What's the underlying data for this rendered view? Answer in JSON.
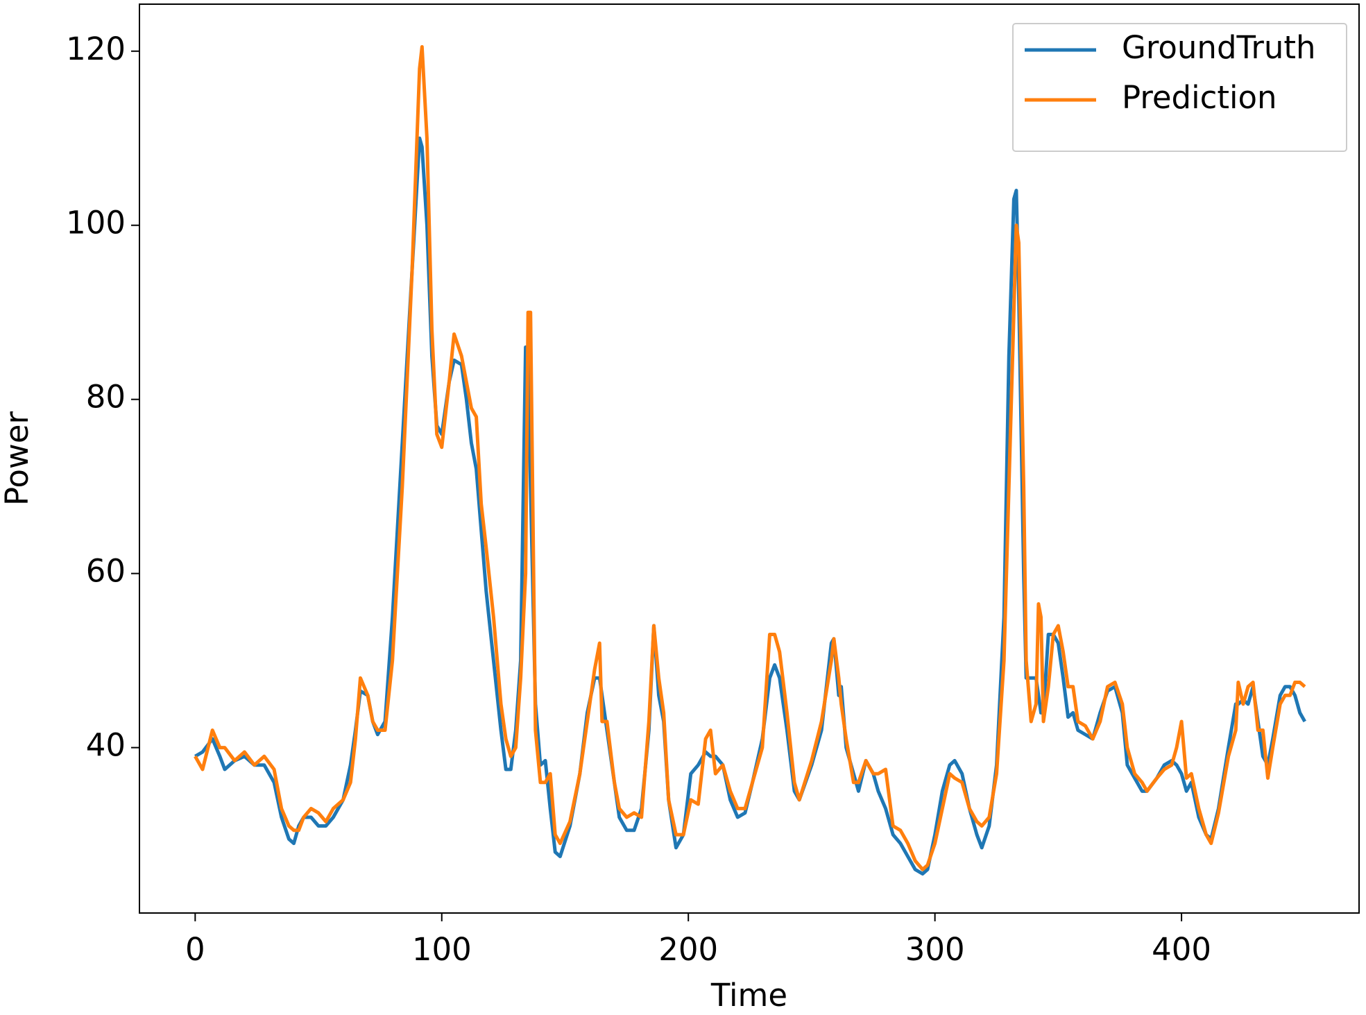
{
  "chart_data": {
    "type": "line",
    "x_label": "Time",
    "y_label": "Power",
    "xlim": [
      -22.6,
      472
    ],
    "ylim": [
      21,
      125.4
    ],
    "xticks": [
      0,
      100,
      200,
      300,
      400
    ],
    "yticks": [
      40,
      60,
      80,
      100,
      120
    ],
    "grid": false,
    "legend": "upper right",
    "x": [
      0,
      3,
      7,
      10,
      12,
      16,
      20,
      24,
      28,
      32,
      35,
      38,
      40,
      42,
      44,
      47,
      50,
      53,
      56,
      60,
      63,
      65,
      67,
      70,
      72,
      74,
      77,
      80,
      84,
      88,
      91,
      92,
      94,
      96,
      98,
      100,
      103,
      105,
      108,
      110,
      112,
      114,
      116,
      118,
      121,
      124,
      126,
      128,
      130,
      132,
      134,
      135,
      136,
      138,
      140,
      142,
      144,
      146,
      148,
      152,
      156,
      159,
      162,
      164,
      165,
      167,
      170,
      172,
      175,
      178,
      181,
      184,
      186,
      188,
      190,
      192,
      195,
      198,
      201,
      204,
      207,
      209,
      211,
      214,
      217,
      220,
      223,
      226,
      230,
      233,
      235,
      237,
      240,
      243,
      245,
      250,
      254,
      258,
      259,
      261,
      262,
      264,
      267,
      269,
      272,
      275,
      277,
      280,
      283,
      286,
      289,
      292,
      295,
      297,
      300,
      303,
      306,
      308,
      311,
      314,
      317,
      319,
      322,
      325,
      328,
      330,
      332,
      333,
      334,
      336,
      337,
      339,
      341,
      342,
      343,
      344,
      346,
      348,
      350,
      352,
      354,
      356,
      358,
      361,
      364,
      367,
      370,
      373,
      376,
      378,
      381,
      384,
      386,
      390,
      393,
      396,
      398,
      400,
      402,
      404,
      407,
      410,
      412,
      415,
      419,
      422,
      423,
      425,
      427,
      429,
      431,
      433,
      435,
      437,
      440,
      442,
      444,
      446,
      448,
      450
    ],
    "series": [
      {
        "name": "GroundTruth",
        "color": "#1f77b4",
        "values": [
          39,
          39.5,
          41,
          39,
          37.5,
          38.5,
          39,
          38,
          38,
          36,
          32,
          29.5,
          29,
          31,
          32,
          32,
          31,
          31,
          32,
          34,
          38,
          42,
          46.5,
          46,
          43,
          41.5,
          43,
          55,
          75,
          95,
          110,
          109,
          100,
          85,
          77,
          76,
          82,
          84.5,
          84,
          80,
          75,
          72,
          65,
          58,
          50,
          42,
          37.5,
          37.5,
          42,
          50,
          86,
          86,
          70,
          45,
          38,
          38.5,
          33,
          28,
          27.5,
          31,
          37,
          44,
          48,
          48,
          46,
          42,
          36,
          32,
          30.5,
          30.5,
          33,
          42,
          54,
          46,
          43,
          34,
          28.5,
          30,
          37,
          38,
          39.5,
          39,
          39,
          38,
          34,
          32,
          32.5,
          36,
          41,
          48,
          49.5,
          48,
          42,
          35,
          34,
          38,
          42,
          52,
          52.5,
          46,
          47,
          40,
          37,
          35,
          38.5,
          37,
          35,
          33,
          30,
          29,
          27.5,
          26,
          25.5,
          26,
          30,
          35,
          38,
          38.5,
          37,
          33,
          30,
          28.5,
          31,
          38,
          55,
          85,
          103,
          104,
          92,
          60,
          48,
          48,
          48,
          46,
          44,
          44,
          53,
          53,
          52,
          48,
          43.5,
          44,
          42,
          41.5,
          41,
          44,
          46.5,
          47,
          44,
          38,
          36.5,
          35,
          35,
          36.5,
          38,
          38.5,
          38,
          37,
          35,
          36,
          32,
          30,
          29.5,
          33,
          40,
          45,
          45,
          45.5,
          45,
          47,
          43,
          39,
          38,
          41,
          46,
          47,
          47,
          46,
          44,
          43
        ]
      },
      {
        "name": "Prediction",
        "color": "#ff7f0e",
        "values": [
          39,
          37.5,
          42,
          40,
          40,
          38.5,
          39.5,
          38,
          39,
          37.5,
          33,
          31,
          30.5,
          30.5,
          32,
          33,
          32.5,
          31.5,
          33,
          34,
          36,
          41,
          48,
          46,
          43,
          42,
          42,
          50,
          70,
          95,
          118,
          120.5,
          110,
          88,
          76,
          74.5,
          82,
          87.5,
          85,
          82,
          79,
          78,
          68,
          63,
          55,
          45,
          41,
          39,
          40,
          48,
          60,
          90,
          90,
          42,
          36,
          36,
          37,
          30,
          29,
          31.5,
          37,
          43,
          49,
          52,
          43,
          43,
          36,
          33,
          32,
          32.5,
          32,
          43,
          54,
          48,
          44,
          34,
          30,
          30,
          34,
          33.5,
          41,
          42,
          37,
          38,
          35,
          33,
          33,
          36,
          40,
          53,
          53,
          51,
          44,
          36,
          34,
          38.5,
          43,
          50,
          52.5,
          48,
          45,
          41,
          36,
          36,
          38.5,
          37,
          37,
          37.5,
          31,
          30.5,
          29,
          27,
          26,
          26.5,
          29,
          33,
          37,
          36.5,
          36,
          33,
          31.5,
          31,
          32,
          37,
          50,
          70,
          90,
          100,
          98,
          70,
          50,
          43,
          45,
          56.5,
          55,
          43,
          47,
          53,
          54,
          51,
          47,
          47,
          43,
          42.5,
          41,
          43,
          47,
          47.5,
          45,
          40,
          37,
          36,
          35,
          36.5,
          37.5,
          38,
          40,
          43,
          36.5,
          37,
          33,
          30,
          29,
          32.5,
          39,
          42,
          47.5,
          45,
          47,
          47.5,
          42,
          42,
          36.5,
          40,
          45,
          46,
          46,
          47.5,
          47.5,
          47
        ]
      }
    ]
  }
}
